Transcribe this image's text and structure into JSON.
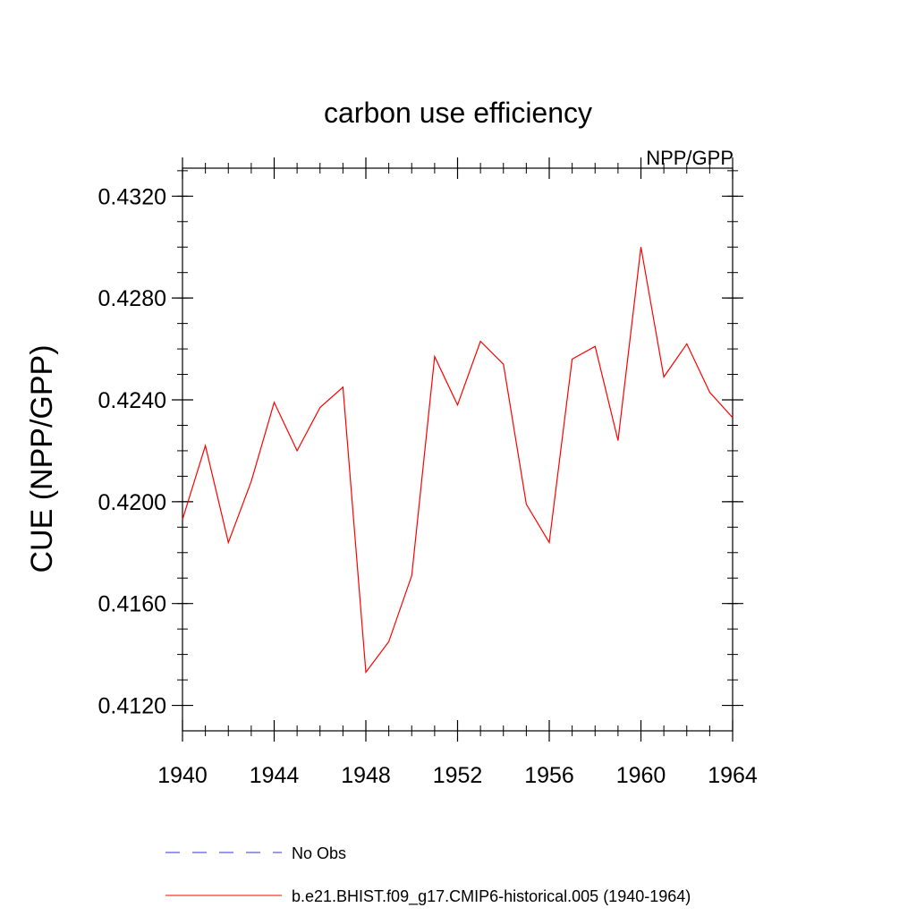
{
  "chart_data": {
    "type": "line",
    "title": "carbon use efficiency",
    "subtitle": "NPP/GPP",
    "xlabel": "",
    "ylabel": "CUE  (NPP/GPP)",
    "xlim": [
      1940,
      1964
    ],
    "ylim": [
      0.411,
      0.4331
    ],
    "x_ticks": [
      "1940",
      "1944",
      "1948",
      "1952",
      "1956",
      "1960",
      "1964"
    ],
    "y_ticks": [
      "0.4120",
      "0.4160",
      "0.4200",
      "0.4240",
      "0.4280",
      "0.4320"
    ],
    "x_tick_values": [
      1940,
      1944,
      1948,
      1952,
      1956,
      1960,
      1964
    ],
    "y_tick_values": [
      0.412,
      0.416,
      0.42,
      0.424,
      0.428,
      0.432
    ],
    "series": [
      {
        "name": "b.e21.BHIST.f09_g17.CMIP6-historical.005 (1940-1964)",
        "color": "#ff0000",
        "style": "solid",
        "x": [
          1940,
          1941,
          1942,
          1943,
          1944,
          1945,
          1946,
          1947,
          1948,
          1949,
          1950,
          1951,
          1952,
          1953,
          1954,
          1955,
          1956,
          1957,
          1958,
          1959,
          1960,
          1961,
          1962,
          1963,
          1964
        ],
        "values": [
          0.4193,
          0.4222,
          0.4184,
          0.4208,
          0.4239,
          0.422,
          0.4237,
          0.4245,
          0.4133,
          0.4145,
          0.4171,
          0.4257,
          0.4238,
          0.4263,
          0.4254,
          0.4199,
          0.4184,
          0.4256,
          0.4261,
          0.4224,
          0.43,
          0.4249,
          0.4262,
          0.4243,
          0.4233
        ]
      }
    ],
    "legend": [
      {
        "label": "No Obs",
        "color": "#3333cc",
        "style": "dashed"
      },
      {
        "label": "b.e21.BHIST.f09_g17.CMIP6-historical.005 (1940-1964)",
        "color": "#ff0000",
        "style": "solid"
      }
    ],
    "legend_position": "bottom"
  }
}
